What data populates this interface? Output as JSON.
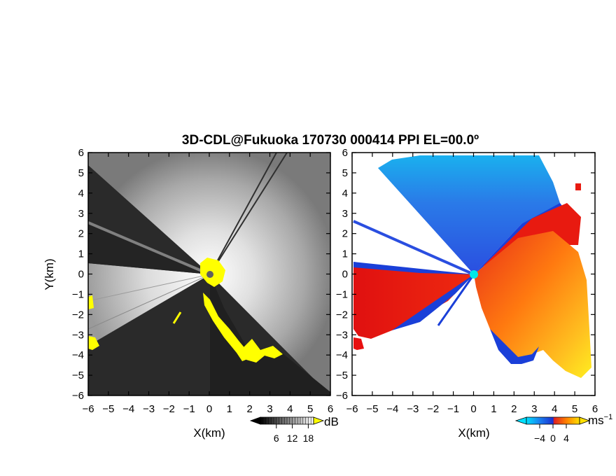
{
  "chart_data": [
    {
      "type": "heatmap",
      "panel": "left",
      "title": "3D-CDL@Fukuoka 170730 000414 PPI EL=00.0º",
      "xlabel": "X(km)",
      "ylabel": "Y(km)",
      "xlim": [
        -6,
        6
      ],
      "ylim": [
        -6,
        6
      ],
      "xticks": [
        -6,
        -5,
        -4,
        -3,
        -2,
        -1,
        0,
        1,
        2,
        3,
        4,
        5,
        6
      ],
      "yticks": [
        -6,
        -5,
        -4,
        -3,
        -2,
        -1,
        0,
        1,
        2,
        3,
        4,
        5,
        6
      ],
      "xtick_labels": [
        "−6",
        "−5",
        "−4",
        "−3",
        "−2",
        "−1",
        "0",
        "1",
        "2",
        "3",
        "4",
        "5",
        "6"
      ],
      "ytick_labels": [
        "−6",
        "−5",
        "−4",
        "−3",
        "−2",
        "−1",
        "0",
        "1",
        "2",
        "3",
        "4",
        "5",
        "6"
      ],
      "colorbar": {
        "unit": "dB",
        "ticks": [
          6,
          12,
          18
        ],
        "tick_labels": [
          "6",
          "12",
          "18"
        ],
        "colormap": "grayscale",
        "overflow_color": "#ffff00"
      },
      "radar_site": [
        0,
        0
      ]
    },
    {
      "type": "heatmap",
      "panel": "right",
      "xlabel": "X(km)",
      "xlim": [
        -6,
        6
      ],
      "ylim": [
        -6,
        6
      ],
      "xticks": [
        -6,
        -5,
        -4,
        -3,
        -2,
        -1,
        0,
        1,
        2,
        3,
        4,
        5,
        6
      ],
      "yticks": [
        -6,
        -5,
        -4,
        -3,
        -2,
        -1,
        0,
        1,
        2,
        3,
        4,
        5,
        6
      ],
      "xtick_labels": [
        "−6",
        "−5",
        "−4",
        "−3",
        "−2",
        "−1",
        "0",
        "1",
        "2",
        "3",
        "4",
        "5",
        "6"
      ],
      "ytick_labels": [
        "−6",
        "−5",
        "−4",
        "−3",
        "−2",
        "−1",
        "0",
        "1",
        "2",
        "3",
        "4",
        "5",
        "6"
      ],
      "colorbar": {
        "unit": "ms",
        "unit_exponent": "−1",
        "ticks": [
          -4,
          0,
          4
        ],
        "tick_labels": [
          "−4",
          "0",
          "4"
        ],
        "colormap": [
          "#00e0ff",
          "#1a4fe0",
          "#e02020",
          "#ff8000",
          "#ffe000"
        ]
      },
      "radar_site": [
        0,
        0
      ],
      "radar_site_color": "#00e8e8"
    }
  ]
}
